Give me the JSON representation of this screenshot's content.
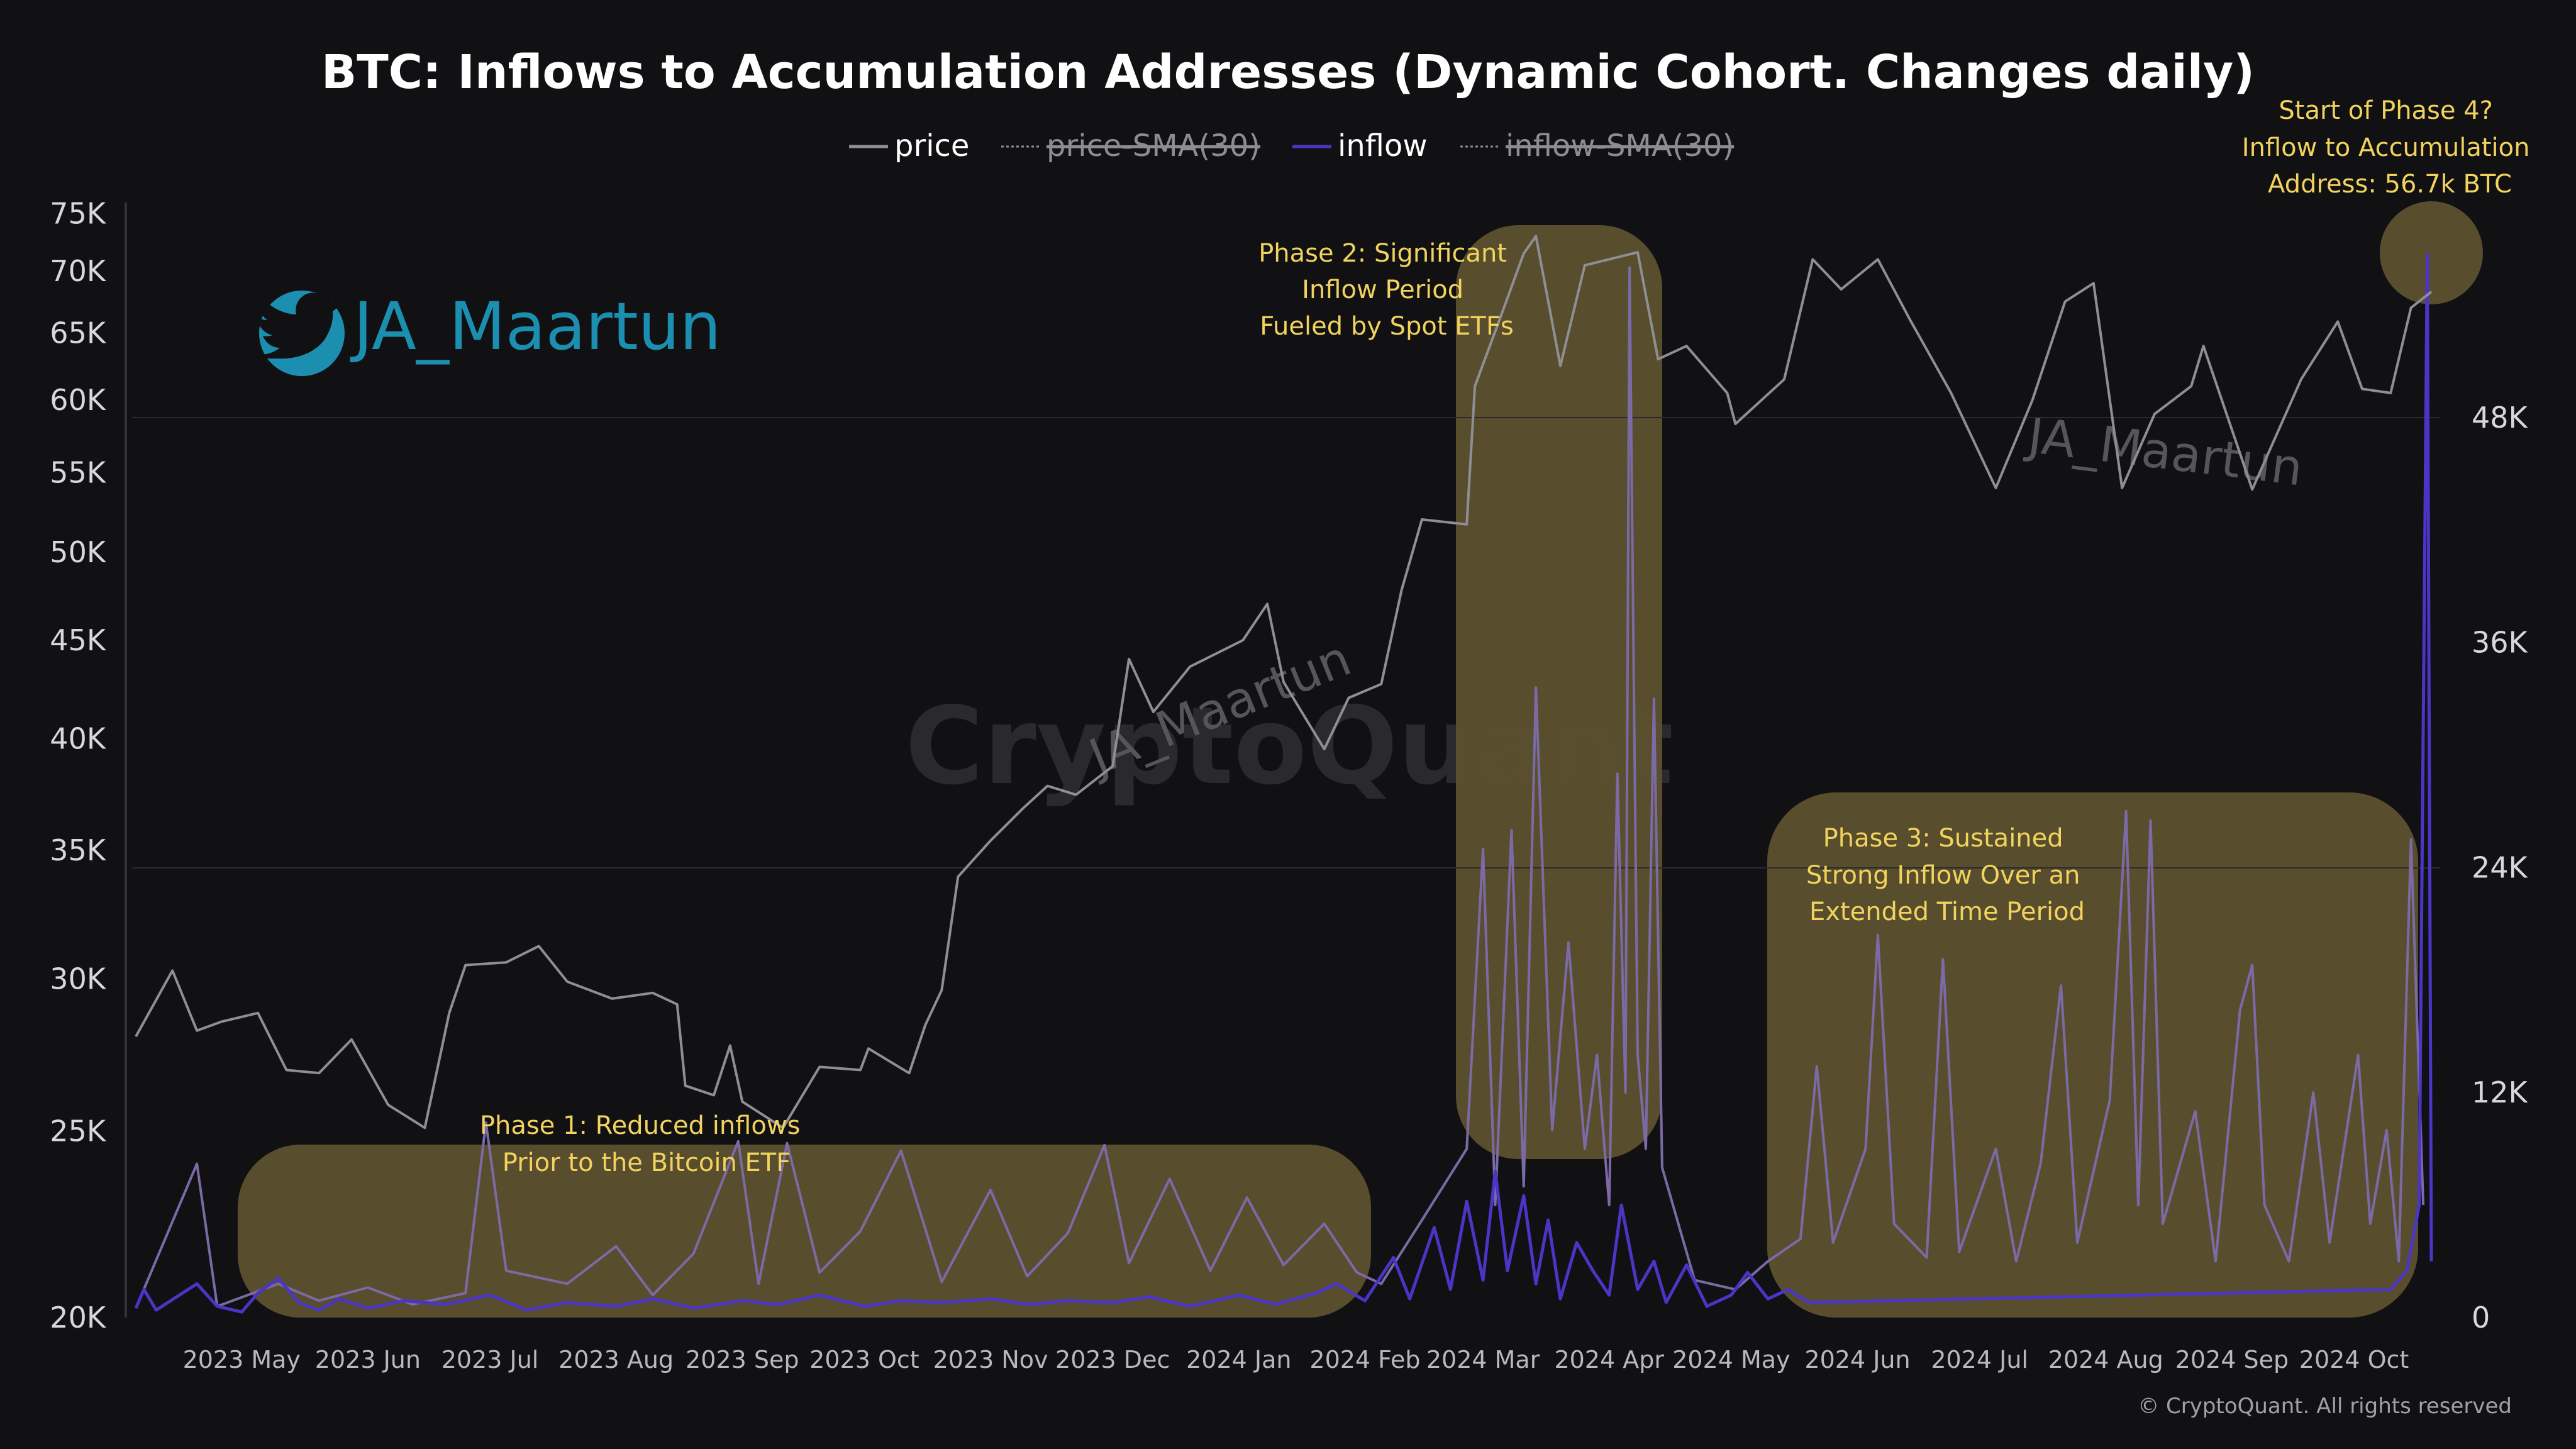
{
  "chart_data": {
    "type": "line",
    "title": "BTC: Inflows to Accumulation Addresses (Dynamic Cohort. Changes daily)",
    "legend": [
      {
        "name": "price",
        "color": "#8e8e95",
        "active": true
      },
      {
        "name": "price-SMA(30)",
        "color": "#8e8e95",
        "active": false
      },
      {
        "name": "inflow",
        "color": "#4b35c7",
        "active": true
      },
      {
        "name": "inflow-SMA(30)",
        "color": "#8e8e95",
        "active": false
      }
    ],
    "x_labels": [
      "2023 May",
      "2023 Jun",
      "2023 Jul",
      "2023 Aug",
      "2023 Sep",
      "2023 Oct",
      "2023 Nov",
      "2023 Dec",
      "2024 Jan",
      "2024 Feb",
      "2024 Mar",
      "2024 Apr",
      "2024 May",
      "2024 Jun",
      "2024 Jul",
      "2024 Aug",
      "2024 Sep",
      "2024 Oct"
    ],
    "x_range": [
      "2023-04-05",
      "2024-10-20"
    ],
    "y_left": {
      "scale": "log",
      "range": [
        20000,
        76000
      ],
      "ticks": [
        20000,
        25000,
        30000,
        35000,
        40000,
        45000,
        50000,
        55000,
        60000,
        65000,
        70000,
        75000
      ],
      "tick_labels": [
        "20K",
        "25K",
        "30K",
        "35K",
        "40K",
        "45K",
        "50K",
        "55K",
        "60K",
        "65K",
        "70K",
        "75K"
      ]
    },
    "y_right": {
      "scale": "linear",
      "range": [
        0,
        60000
      ],
      "ticks": [
        0,
        12000,
        24000,
        36000,
        48000
      ],
      "tick_labels": [
        "0",
        "12K",
        "24K",
        "36K",
        "48K"
      ]
    },
    "series": [
      {
        "name": "price",
        "axis": "left",
        "color": "#8e8e95",
        "points": [
          [
            "2023-04-05",
            28000
          ],
          [
            "2023-04-14",
            30300
          ],
          [
            "2023-04-20",
            28200
          ],
          [
            "2023-04-26",
            28500
          ],
          [
            "2023-05-05",
            28800
          ],
          [
            "2023-05-12",
            26900
          ],
          [
            "2023-05-20",
            26800
          ],
          [
            "2023-05-28",
            27900
          ],
          [
            "2023-06-06",
            25800
          ],
          [
            "2023-06-15",
            25100
          ],
          [
            "2023-06-21",
            28800
          ],
          [
            "2023-06-25",
            30500
          ],
          [
            "2023-07-05",
            30600
          ],
          [
            "2023-07-13",
            31200
          ],
          [
            "2023-07-20",
            29900
          ],
          [
            "2023-07-31",
            29300
          ],
          [
            "2023-08-10",
            29500
          ],
          [
            "2023-08-16",
            29100
          ],
          [
            "2023-08-18",
            26400
          ],
          [
            "2023-08-25",
            26100
          ],
          [
            "2023-08-29",
            27700
          ],
          [
            "2023-09-01",
            25900
          ],
          [
            "2023-09-11",
            25100
          ],
          [
            "2023-09-20",
            27000
          ],
          [
            "2023-09-30",
            26900
          ],
          [
            "2023-10-02",
            27600
          ],
          [
            "2023-10-12",
            26800
          ],
          [
            "2023-10-16",
            28400
          ],
          [
            "2023-10-20",
            29600
          ],
          [
            "2023-10-24",
            33900
          ],
          [
            "2023-11-01",
            35400
          ],
          [
            "2023-11-09",
            36800
          ],
          [
            "2023-11-15",
            37800
          ],
          [
            "2023-11-22",
            37400
          ],
          [
            "2023-12-01",
            38700
          ],
          [
            "2023-12-05",
            44000
          ],
          [
            "2023-12-11",
            41300
          ],
          [
            "2023-12-20",
            43600
          ],
          [
            "2024-01-02",
            45000
          ],
          [
            "2024-01-08",
            47000
          ],
          [
            "2024-01-12",
            42800
          ],
          [
            "2024-01-22",
            39500
          ],
          [
            "2024-01-28",
            42000
          ],
          [
            "2024-02-05",
            42700
          ],
          [
            "2024-02-10",
            47800
          ],
          [
            "2024-02-15",
            52000
          ],
          [
            "2024-02-26",
            51700
          ],
          [
            "2024-02-28",
            61000
          ],
          [
            "2024-03-05",
            66000
          ],
          [
            "2024-03-11",
            71500
          ],
          [
            "2024-03-14",
            73000
          ],
          [
            "2024-03-20",
            62500
          ],
          [
            "2024-03-26",
            70500
          ],
          [
            "2024-04-08",
            71600
          ],
          [
            "2024-04-13",
            63000
          ],
          [
            "2024-04-20",
            64000
          ],
          [
            "2024-04-30",
            60500
          ],
          [
            "2024-05-02",
            58300
          ],
          [
            "2024-05-14",
            61500
          ],
          [
            "2024-05-21",
            71000
          ],
          [
            "2024-05-28",
            68500
          ],
          [
            "2024-06-06",
            71000
          ],
          [
            "2024-06-14",
            66000
          ],
          [
            "2024-06-24",
            60500
          ],
          [
            "2024-07-05",
            54000
          ],
          [
            "2024-07-14",
            60000
          ],
          [
            "2024-07-22",
            67500
          ],
          [
            "2024-07-29",
            69000
          ],
          [
            "2024-08-05",
            54000
          ],
          [
            "2024-08-13",
            59000
          ],
          [
            "2024-08-22",
            61000
          ],
          [
            "2024-08-25",
            64000
          ],
          [
            "2024-09-06",
            53900
          ],
          [
            "2024-09-18",
            61500
          ],
          [
            "2024-09-27",
            65900
          ],
          [
            "2024-10-03",
            60800
          ],
          [
            "2024-10-10",
            60500
          ],
          [
            "2024-10-15",
            67000
          ],
          [
            "2024-10-20",
            68300
          ]
        ]
      },
      {
        "name": "inflow",
        "axis": "right",
        "color": "#4b35c7",
        "points": [
          [
            "2023-04-05",
            500
          ],
          [
            "2023-04-07",
            1500
          ],
          [
            "2023-04-10",
            400
          ],
          [
            "2023-04-15",
            1100
          ],
          [
            "2023-04-20",
            1800
          ],
          [
            "2023-04-25",
            600
          ],
          [
            "2023-05-01",
            300
          ],
          [
            "2023-05-05",
            1300
          ],
          [
            "2023-05-10",
            2100
          ],
          [
            "2023-05-15",
            800
          ],
          [
            "2023-05-20",
            400
          ],
          [
            "2023-05-25",
            1000
          ],
          [
            "2023-06-01",
            500
          ],
          [
            "2023-06-10",
            900
          ],
          [
            "2023-06-20",
            700
          ],
          [
            "2023-07-01",
            1200
          ],
          [
            "2023-07-10",
            400
          ],
          [
            "2023-07-20",
            800
          ],
          [
            "2023-08-01",
            600
          ],
          [
            "2023-08-10",
            1000
          ],
          [
            "2023-08-20",
            500
          ],
          [
            "2023-09-01",
            900
          ],
          [
            "2023-09-10",
            700
          ],
          [
            "2023-09-20",
            1200
          ],
          [
            "2023-10-01",
            600
          ],
          [
            "2023-10-10",
            900
          ],
          [
            "2023-10-20",
            800
          ],
          [
            "2023-11-01",
            1000
          ],
          [
            "2023-11-10",
            700
          ],
          [
            "2023-11-20",
            900
          ],
          [
            "2023-12-01",
            800
          ],
          [
            "2023-12-10",
            1100
          ],
          [
            "2023-12-20",
            600
          ],
          [
            "2024-01-01",
            1200
          ],
          [
            "2024-01-10",
            700
          ],
          [
            "2024-01-20",
            1300
          ],
          [
            "2024-01-25",
            1800
          ],
          [
            "2024-02-01",
            900
          ],
          [
            "2024-02-08",
            3200
          ],
          [
            "2024-02-12",
            1000
          ],
          [
            "2024-02-18",
            4800
          ],
          [
            "2024-02-22",
            1500
          ],
          [
            "2024-02-26",
            6200
          ],
          [
            "2024-03-01",
            2000
          ],
          [
            "2024-03-04",
            7800
          ],
          [
            "2024-03-07",
            2500
          ],
          [
            "2024-03-11",
            6500
          ],
          [
            "2024-03-14",
            1800
          ],
          [
            "2024-03-17",
            5200
          ],
          [
            "2024-03-20",
            1000
          ],
          [
            "2024-03-24",
            4000
          ],
          [
            "2024-03-28",
            2500
          ],
          [
            "2024-04-01",
            1200
          ],
          [
            "2024-04-04",
            6000
          ],
          [
            "2024-04-08",
            1500
          ],
          [
            "2024-04-12",
            3000
          ],
          [
            "2024-04-15",
            800
          ],
          [
            "2024-04-20",
            2800
          ],
          [
            "2024-04-25",
            600
          ],
          [
            "2024-05-01",
            1200
          ],
          [
            "2024-05-05",
            2400
          ],
          [
            "2024-05-10",
            1000
          ],
          [
            "2024-05-15",
            1500
          ],
          [
            "2024-05-20",
            800
          ],
          [
            "2024-10-10",
            1500
          ],
          [
            "2024-10-14",
            2500
          ],
          [
            "2024-10-17",
            6000
          ],
          [
            "2024-10-19",
            56700
          ],
          [
            "2024-10-20",
            3000
          ]
        ]
      },
      {
        "name": "inflow-SMA(30)",
        "axis": "right",
        "color": "#7b6aa6",
        "points": [
          [
            "2023-04-05",
            500
          ],
          [
            "2023-04-20",
            8200
          ],
          [
            "2023-04-25",
            600
          ],
          [
            "2023-05-10",
            1800
          ],
          [
            "2023-05-20",
            900
          ],
          [
            "2023-06-01",
            1600
          ],
          [
            "2023-06-12",
            700
          ],
          [
            "2023-06-25",
            1300
          ],
          [
            "2023-06-30",
            10400
          ],
          [
            "2023-07-05",
            2500
          ],
          [
            "2023-07-20",
            1800
          ],
          [
            "2023-08-01",
            3800
          ],
          [
            "2023-08-10",
            1200
          ],
          [
            "2023-08-20",
            3400
          ],
          [
            "2023-08-31",
            9400
          ],
          [
            "2023-09-05",
            1800
          ],
          [
            "2023-09-12",
            9300
          ],
          [
            "2023-09-20",
            2400
          ],
          [
            "2023-09-30",
            4600
          ],
          [
            "2023-10-10",
            8900
          ],
          [
            "2023-10-20",
            1900
          ],
          [
            "2023-11-01",
            6800
          ],
          [
            "2023-11-10",
            2200
          ],
          [
            "2023-11-20",
            4500
          ],
          [
            "2023-11-29",
            9200
          ],
          [
            "2023-12-05",
            2900
          ],
          [
            "2023-12-15",
            7400
          ],
          [
            "2023-12-25",
            2500
          ],
          [
            "2024-01-03",
            6400
          ],
          [
            "2024-01-12",
            2800
          ],
          [
            "2024-01-22",
            5000
          ],
          [
            "2024-01-30",
            2400
          ],
          [
            "2024-02-05",
            1800
          ],
          [
            "2024-02-15",
            5200
          ],
          [
            "2024-02-26",
            9000
          ],
          [
            "2024-03-01",
            25000
          ],
          [
            "2024-03-04",
            6000
          ],
          [
            "2024-03-08",
            26000
          ],
          [
            "2024-03-11",
            7000
          ],
          [
            "2024-03-14",
            33600
          ],
          [
            "2024-03-18",
            10000
          ],
          [
            "2024-03-22",
            20000
          ],
          [
            "2024-03-26",
            9000
          ],
          [
            "2024-03-29",
            14000
          ],
          [
            "2024-04-01",
            6000
          ],
          [
            "2024-04-03",
            29000
          ],
          [
            "2024-04-05",
            12000
          ],
          [
            "2024-04-06",
            56000
          ],
          [
            "2024-04-08",
            14000
          ],
          [
            "2024-04-10",
            9000
          ],
          [
            "2024-04-12",
            33000
          ],
          [
            "2024-04-14",
            8000
          ],
          [
            "2024-04-18",
            5000
          ],
          [
            "2024-04-22",
            2000
          ],
          [
            "2024-05-02",
            1500
          ],
          [
            "2024-05-10",
            3000
          ],
          [
            "2024-05-18",
            4200
          ],
          [
            "2024-05-22",
            13400
          ],
          [
            "2024-05-26",
            4000
          ],
          [
            "2024-06-03",
            9000
          ],
          [
            "2024-06-06",
            20400
          ],
          [
            "2024-06-10",
            5000
          ],
          [
            "2024-06-18",
            3200
          ],
          [
            "2024-06-22",
            19100
          ],
          [
            "2024-06-26",
            3500
          ],
          [
            "2024-07-05",
            9000
          ],
          [
            "2024-07-10",
            3000
          ],
          [
            "2024-07-16",
            8200
          ],
          [
            "2024-07-21",
            17700
          ],
          [
            "2024-07-25",
            4000
          ],
          [
            "2024-08-02",
            11600
          ],
          [
            "2024-08-06",
            27000
          ],
          [
            "2024-08-09",
            6000
          ],
          [
            "2024-08-12",
            26500
          ],
          [
            "2024-08-15",
            5000
          ],
          [
            "2024-08-23",
            11000
          ],
          [
            "2024-08-28",
            3000
          ],
          [
            "2024-09-03",
            16400
          ],
          [
            "2024-09-06",
            18800
          ],
          [
            "2024-09-09",
            6000
          ],
          [
            "2024-09-15",
            3000
          ],
          [
            "2024-09-21",
            12000
          ],
          [
            "2024-09-25",
            4000
          ],
          [
            "2024-10-02",
            14000
          ],
          [
            "2024-10-05",
            5000
          ],
          [
            "2024-10-09",
            10000
          ],
          [
            "2024-10-12",
            3000
          ],
          [
            "2024-10-15",
            25500
          ],
          [
            "2024-10-18",
            6000
          ]
        ]
      }
    ],
    "annotations": [
      {
        "id": "phase1",
        "lines": [
          "Phase 1: Reduced inflows",
          "Prior to the Bitcoin ETF"
        ]
      },
      {
        "id": "phase2",
        "lines": [
          "Phase 2: Significant",
          "Inflow Period",
          "Fueled by Spot ETFs"
        ]
      },
      {
        "id": "phase3",
        "lines": [
          "Phase 3: Sustained",
          "Strong Inflow Over an",
          "Extended Time Period"
        ]
      },
      {
        "id": "phase4",
        "lines": [
          "Start of Phase 4?",
          "Inflow to Accumulation",
          "Address: 56.7k BTC"
        ]
      }
    ],
    "handle": "JA_Maartun",
    "watermark_handle": "JA_Maartun",
    "watermark_brand": "CryptoQuant",
    "copyright": "© CryptoQuant. All rights reserved"
  }
}
